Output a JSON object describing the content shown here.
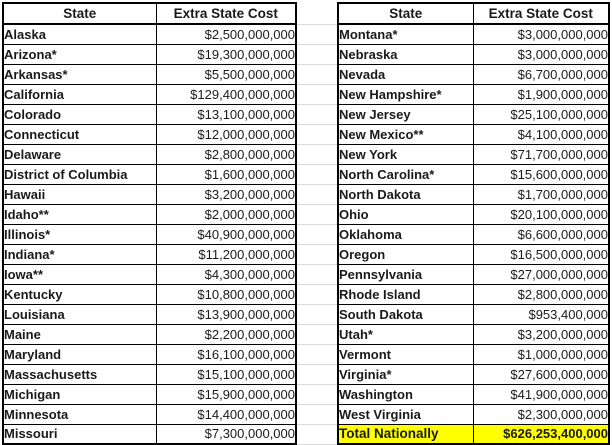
{
  "colors": {
    "table_border": "#000000",
    "total_highlight": "#ffff00",
    "gridline": "#d9d9d9",
    "text": "#1a1a1a"
  },
  "tables": [
    {
      "id": "left",
      "headers": {
        "state": "State",
        "cost": "Extra State Cost"
      },
      "rows": [
        {
          "state": "Alaska",
          "cost": "$2,500,000,000"
        },
        {
          "state": "Arizona*",
          "cost": "$19,300,000,000"
        },
        {
          "state": "Arkansas*",
          "cost": "$5,500,000,000"
        },
        {
          "state": "California",
          "cost": "$129,400,000,000"
        },
        {
          "state": "Colorado",
          "cost": "$13,100,000,000"
        },
        {
          "state": "Connecticut",
          "cost": "$12,000,000,000"
        },
        {
          "state": "Delaware",
          "cost": "$2,800,000,000"
        },
        {
          "state": "District of Columbia",
          "cost": "$1,600,000,000"
        },
        {
          "state": "Hawaii",
          "cost": "$3,200,000,000"
        },
        {
          "state": "Idaho**",
          "cost": "$2,000,000,000"
        },
        {
          "state": "Illinois*",
          "cost": "$40,900,000,000"
        },
        {
          "state": "Indiana*",
          "cost": "$11,200,000,000"
        },
        {
          "state": "Iowa**",
          "cost": "$4,300,000,000"
        },
        {
          "state": "Kentucky",
          "cost": "$10,800,000,000"
        },
        {
          "state": "Louisiana",
          "cost": "$13,900,000,000"
        },
        {
          "state": "Maine",
          "cost": "$2,200,000,000"
        },
        {
          "state": "Maryland",
          "cost": "$16,100,000,000"
        },
        {
          "state": "Massachusetts",
          "cost": "$15,100,000,000"
        },
        {
          "state": "Michigan",
          "cost": "$15,900,000,000"
        },
        {
          "state": "Minnesota",
          "cost": "$14,400,000,000"
        },
        {
          "state": "Missouri",
          "cost": "$7,300,000,000"
        }
      ]
    },
    {
      "id": "right",
      "headers": {
        "state": "State",
        "cost": "Extra State Cost"
      },
      "rows": [
        {
          "state": "Montana*",
          "cost": "$3,000,000,000"
        },
        {
          "state": "Nebraska",
          "cost": "$3,000,000,000"
        },
        {
          "state": "Nevada",
          "cost": "$6,700,000,000"
        },
        {
          "state": "New Hampshire*",
          "cost": "$1,900,000,000"
        },
        {
          "state": "New Jersey",
          "cost": "$25,100,000,000"
        },
        {
          "state": "New Mexico**",
          "cost": "$4,100,000,000"
        },
        {
          "state": "New York",
          "cost": "$71,700,000,000"
        },
        {
          "state": "North Carolina*",
          "cost": "$15,600,000,000"
        },
        {
          "state": "North Dakota",
          "cost": "$1,700,000,000"
        },
        {
          "state": "Ohio",
          "cost": "$20,100,000,000"
        },
        {
          "state": "Oklahoma",
          "cost": "$6,600,000,000"
        },
        {
          "state": "Oregon",
          "cost": "$16,500,000,000"
        },
        {
          "state": "Pennsylvania",
          "cost": "$27,000,000,000"
        },
        {
          "state": "Rhode Island",
          "cost": "$2,800,000,000"
        },
        {
          "state": "South Dakota",
          "cost": "$953,400,000"
        },
        {
          "state": "Utah*",
          "cost": "$3,200,000,000"
        },
        {
          "state": "Vermont",
          "cost": "$1,000,000,000"
        },
        {
          "state": "Virginia*",
          "cost": "$27,600,000,000"
        },
        {
          "state": "Washington",
          "cost": "$41,900,000,000"
        },
        {
          "state": "West Virginia",
          "cost": "$2,300,000,000"
        },
        {
          "state": "Total Nationally",
          "cost": "$626,253,400,000",
          "total": true
        }
      ]
    }
  ],
  "chart_data": [
    {
      "type": "table",
      "title": "Extra State Cost by State (A–M)",
      "columns": [
        "State",
        "Extra State Cost"
      ],
      "rows": [
        [
          "Alaska",
          2500000000
        ],
        [
          "Arizona*",
          19300000000
        ],
        [
          "Arkansas*",
          5500000000
        ],
        [
          "California",
          129400000000
        ],
        [
          "Colorado",
          13100000000
        ],
        [
          "Connecticut",
          12000000000
        ],
        [
          "Delaware",
          2800000000
        ],
        [
          "District of Columbia",
          1600000000
        ],
        [
          "Hawaii",
          3200000000
        ],
        [
          "Idaho**",
          2000000000
        ],
        [
          "Illinois*",
          40900000000
        ],
        [
          "Indiana*",
          11200000000
        ],
        [
          "Iowa**",
          4300000000
        ],
        [
          "Kentucky",
          10800000000
        ],
        [
          "Louisiana",
          13900000000
        ],
        [
          "Maine",
          2200000000
        ],
        [
          "Maryland",
          16100000000
        ],
        [
          "Massachusetts",
          15100000000
        ],
        [
          "Michigan",
          15900000000
        ],
        [
          "Minnesota",
          14400000000
        ],
        [
          "Missouri",
          7300000000
        ]
      ]
    },
    {
      "type": "table",
      "title": "Extra State Cost by State (M–W) with national total",
      "columns": [
        "State",
        "Extra State Cost"
      ],
      "rows": [
        [
          "Montana*",
          3000000000
        ],
        [
          "Nebraska",
          3000000000
        ],
        [
          "Nevada",
          6700000000
        ],
        [
          "New Hampshire*",
          1900000000
        ],
        [
          "New Jersey",
          25100000000
        ],
        [
          "New Mexico**",
          4100000000
        ],
        [
          "New York",
          71700000000
        ],
        [
          "North Carolina*",
          15600000000
        ],
        [
          "North Dakota",
          1700000000
        ],
        [
          "Ohio",
          20100000000
        ],
        [
          "Oklahoma",
          6600000000
        ],
        [
          "Oregon",
          16500000000
        ],
        [
          "Pennsylvania",
          27000000000
        ],
        [
          "Rhode Island",
          2800000000
        ],
        [
          "South Dakota",
          953400000
        ],
        [
          "Utah*",
          3200000000
        ],
        [
          "Vermont",
          1000000000
        ],
        [
          "Virginia*",
          27600000000
        ],
        [
          "Washington",
          41900000000
        ],
        [
          "West Virginia",
          2300000000
        ],
        [
          "Total Nationally",
          626253400000
        ]
      ]
    }
  ]
}
